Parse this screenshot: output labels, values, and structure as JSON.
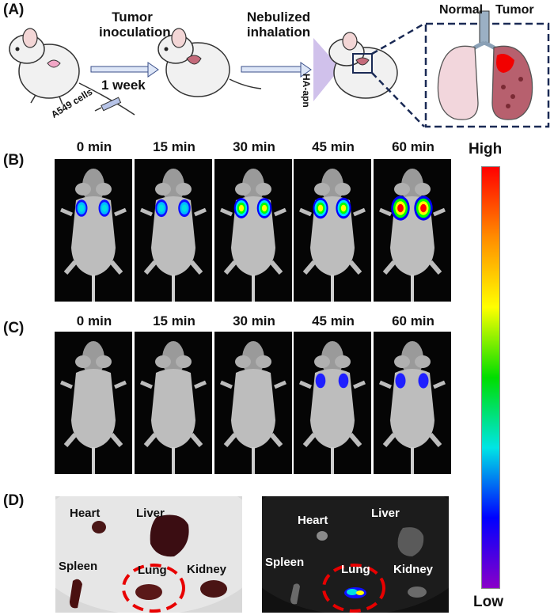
{
  "panel_a": {
    "label": "(A)",
    "step1_line1": "Tumor",
    "step1_line2": "inoculation",
    "step1_duration": "1 week",
    "step2_line1": "Nebulized",
    "step2_line2": "inhalation",
    "cells_label": "A549 cells",
    "nebulizer_label": "HA-apn",
    "lung_normal": "Normal",
    "lung_tumor": "Tumor"
  },
  "panel_b": {
    "label": "(B)",
    "times": [
      "0 min",
      "15 min",
      "30 min",
      "45 min",
      "60 min"
    ],
    "signal_levels": [
      0.25,
      0.3,
      0.55,
      0.6,
      0.95
    ]
  },
  "panel_c": {
    "label": "(C)",
    "times": [
      "0 min",
      "15 min",
      "30 min",
      "45 min",
      "60 min"
    ],
    "signal_levels": [
      0,
      0,
      0,
      0.05,
      0.08
    ]
  },
  "panel_d": {
    "label": "(D)",
    "organs": [
      "Heart",
      "Liver",
      "Spleen",
      "Lung",
      "Kidney"
    ]
  },
  "scale": {
    "high": "High",
    "low": "Low",
    "gradient_colors": [
      "#ff0000",
      "#ff8c00",
      "#ffff00",
      "#00dd00",
      "#00e5e5",
      "#0000ff",
      "#8a00c8"
    ]
  }
}
